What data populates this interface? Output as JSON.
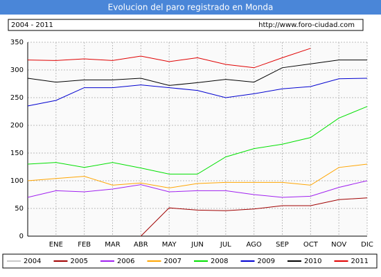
{
  "chart_data": {
    "type": "line",
    "title": "Evolucion del paro registrado en Monda",
    "subtitle": "2004 - 2011",
    "source": "http://www.foro-ciudad.com",
    "categories": [
      null,
      "ENE",
      "FEB",
      "MAR",
      "ABR",
      "MAY",
      "JUN",
      "JUL",
      "AGO",
      "SEP",
      "OCT",
      "NOV",
      "DIC"
    ],
    "ylim": [
      0,
      350
    ],
    "yticks": [
      0,
      50,
      100,
      150,
      200,
      250,
      300,
      350
    ],
    "grid": true,
    "series": [
      {
        "name": "2004",
        "color": "#c8c8c8",
        "values": [
          null,
          null,
          null,
          null,
          null,
          null,
          null,
          null,
          null,
          null,
          null,
          null,
          null
        ]
      },
      {
        "name": "2005",
        "color": "#a00000",
        "values": [
          null,
          null,
          null,
          null,
          0,
          51,
          47,
          46,
          49,
          55,
          55,
          66,
          69
        ]
      },
      {
        "name": "2006",
        "color": "#a020f0",
        "values": [
          70,
          82,
          80,
          85,
          93,
          80,
          82,
          82,
          75,
          70,
          72,
          88,
          100
        ]
      },
      {
        "name": "2007",
        "color": "#ffa500",
        "values": [
          100,
          104,
          108,
          92,
          96,
          87,
          95,
          97,
          97,
          97,
          92,
          124,
          130
        ]
      },
      {
        "name": "2008",
        "color": "#00e000",
        "values": [
          130,
          133,
          124,
          133,
          123,
          112,
          112,
          143,
          158,
          166,
          178,
          213,
          234
        ]
      },
      {
        "name": "2009",
        "color": "#0000d0",
        "values": [
          235,
          245,
          268,
          268,
          273,
          268,
          263,
          250,
          257,
          266,
          270,
          284,
          285
        ]
      },
      {
        "name": "2010",
        "color": "#000000",
        "values": [
          285,
          278,
          282,
          282,
          285,
          272,
          277,
          283,
          278,
          304,
          311,
          318,
          318
        ]
      },
      {
        "name": "2011",
        "color": "#e00000",
        "values": [
          318,
          317,
          320,
          317,
          325,
          315,
          322,
          310,
          304,
          322,
          339,
          null,
          null
        ]
      }
    ]
  }
}
